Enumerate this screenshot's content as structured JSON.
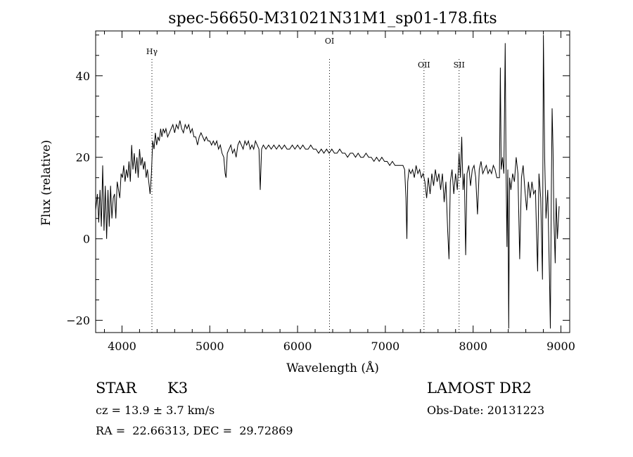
{
  "chart_data": {
    "type": "line",
    "title": "spec-56650-M31021N31M1_sp01-178.fits",
    "xlabel": "Wavelength (Å)",
    "ylabel": "Flux (relative)",
    "xlim": [
      3700,
      9100
    ],
    "ylim": [
      -23,
      51
    ],
    "xticks": [
      4000,
      5000,
      6000,
      7000,
      8000,
      9000
    ],
    "yticks": [
      -20,
      0,
      20,
      40
    ],
    "grid": false,
    "series": [
      {
        "values": [
          [
            3700,
            7
          ],
          [
            3720,
            11
          ],
          [
            3735,
            4
          ],
          [
            3750,
            12
          ],
          [
            3765,
            3
          ],
          [
            3780,
            18
          ],
          [
            3795,
            2
          ],
          [
            3810,
            13
          ],
          [
            3825,
            0
          ],
          [
            3840,
            12
          ],
          [
            3855,
            3
          ],
          [
            3870,
            13
          ],
          [
            3885,
            5
          ],
          [
            3900,
            10
          ],
          [
            3915,
            11
          ],
          [
            3930,
            5
          ],
          [
            3945,
            14
          ],
          [
            3960,
            12
          ],
          [
            3975,
            10
          ],
          [
            3990,
            16
          ],
          [
            4005,
            15
          ],
          [
            4020,
            18
          ],
          [
            4035,
            14
          ],
          [
            4050,
            17
          ],
          [
            4065,
            15
          ],
          [
            4080,
            19
          ],
          [
            4095,
            14
          ],
          [
            4110,
            23
          ],
          [
            4125,
            17
          ],
          [
            4140,
            21
          ],
          [
            4155,
            16
          ],
          [
            4170,
            20
          ],
          [
            4185,
            15
          ],
          [
            4200,
            22
          ],
          [
            4215,
            18
          ],
          [
            4230,
            20
          ],
          [
            4245,
            17
          ],
          [
            4260,
            19
          ],
          [
            4275,
            15
          ],
          [
            4290,
            17
          ],
          [
            4305,
            14
          ],
          [
            4320,
            11
          ],
          [
            4335,
            16
          ],
          [
            4350,
            24
          ],
          [
            4365,
            22
          ],
          [
            4380,
            26
          ],
          [
            4395,
            23
          ],
          [
            4410,
            25
          ],
          [
            4425,
            24
          ],
          [
            4440,
            27
          ],
          [
            4455,
            25
          ],
          [
            4470,
            27
          ],
          [
            4485,
            26
          ],
          [
            4500,
            27
          ],
          [
            4520,
            25
          ],
          [
            4540,
            26
          ],
          [
            4560,
            27
          ],
          [
            4580,
            28
          ],
          [
            4600,
            26
          ],
          [
            4620,
            28
          ],
          [
            4640,
            27
          ],
          [
            4660,
            29
          ],
          [
            4680,
            27
          ],
          [
            4700,
            26
          ],
          [
            4720,
            28
          ],
          [
            4740,
            27
          ],
          [
            4760,
            28
          ],
          [
            4780,
            26
          ],
          [
            4800,
            27
          ],
          [
            4820,
            25
          ],
          [
            4840,
            25
          ],
          [
            4860,
            23
          ],
          [
            4880,
            25
          ],
          [
            4900,
            26
          ],
          [
            4920,
            25
          ],
          [
            4940,
            24
          ],
          [
            4960,
            25
          ],
          [
            4980,
            24
          ],
          [
            5000,
            24
          ],
          [
            5020,
            23
          ],
          [
            5040,
            24
          ],
          [
            5060,
            23
          ],
          [
            5080,
            24
          ],
          [
            5100,
            22
          ],
          [
            5120,
            23
          ],
          [
            5140,
            21
          ],
          [
            5160,
            20
          ],
          [
            5175,
            16
          ],
          [
            5185,
            15
          ],
          [
            5200,
            21
          ],
          [
            5220,
            22
          ],
          [
            5240,
            23
          ],
          [
            5260,
            21
          ],
          [
            5280,
            22
          ],
          [
            5300,
            20
          ],
          [
            5320,
            23
          ],
          [
            5340,
            24
          ],
          [
            5360,
            23
          ],
          [
            5380,
            22
          ],
          [
            5400,
            24
          ],
          [
            5420,
            23
          ],
          [
            5440,
            24
          ],
          [
            5460,
            22
          ],
          [
            5480,
            23
          ],
          [
            5500,
            22
          ],
          [
            5520,
            24
          ],
          [
            5540,
            23
          ],
          [
            5560,
            22
          ],
          [
            5575,
            12
          ],
          [
            5590,
            22
          ],
          [
            5610,
            23
          ],
          [
            5640,
            22
          ],
          [
            5670,
            23
          ],
          [
            5700,
            22
          ],
          [
            5730,
            23
          ],
          [
            5760,
            22
          ],
          [
            5790,
            23
          ],
          [
            5820,
            22
          ],
          [
            5850,
            23
          ],
          [
            5880,
            22
          ],
          [
            5910,
            22
          ],
          [
            5940,
            23
          ],
          [
            5970,
            22
          ],
          [
            6000,
            23
          ],
          [
            6030,
            22
          ],
          [
            6060,
            23
          ],
          [
            6090,
            22
          ],
          [
            6120,
            22
          ],
          [
            6150,
            23
          ],
          [
            6180,
            22
          ],
          [
            6210,
            22
          ],
          [
            6240,
            21
          ],
          [
            6270,
            22
          ],
          [
            6300,
            21
          ],
          [
            6330,
            22
          ],
          [
            6360,
            21
          ],
          [
            6390,
            22
          ],
          [
            6420,
            21
          ],
          [
            6450,
            21
          ],
          [
            6480,
            22
          ],
          [
            6510,
            21
          ],
          [
            6540,
            21
          ],
          [
            6570,
            20
          ],
          [
            6600,
            21
          ],
          [
            6630,
            21
          ],
          [
            6660,
            20
          ],
          [
            6690,
            21
          ],
          [
            6720,
            20
          ],
          [
            6750,
            20
          ],
          [
            6780,
            21
          ],
          [
            6810,
            20
          ],
          [
            6840,
            20
          ],
          [
            6870,
            19
          ],
          [
            6900,
            20
          ],
          [
            6930,
            19
          ],
          [
            6960,
            20
          ],
          [
            6990,
            19
          ],
          [
            7020,
            19
          ],
          [
            7050,
            18
          ],
          [
            7080,
            19
          ],
          [
            7110,
            18
          ],
          [
            7140,
            18
          ],
          [
            7170,
            18
          ],
          [
            7200,
            18
          ],
          [
            7220,
            17
          ],
          [
            7235,
            10
          ],
          [
            7245,
            0
          ],
          [
            7255,
            14
          ],
          [
            7270,
            17
          ],
          [
            7290,
            16
          ],
          [
            7310,
            17
          ],
          [
            7330,
            15
          ],
          [
            7350,
            18
          ],
          [
            7370,
            16
          ],
          [
            7390,
            17
          ],
          [
            7410,
            15
          ],
          [
            7430,
            16
          ],
          [
            7450,
            14
          ],
          [
            7470,
            10
          ],
          [
            7490,
            15
          ],
          [
            7510,
            11
          ],
          [
            7530,
            16
          ],
          [
            7550,
            13
          ],
          [
            7570,
            17
          ],
          [
            7590,
            14
          ],
          [
            7610,
            16
          ],
          [
            7630,
            12
          ],
          [
            7650,
            16
          ],
          [
            7670,
            9
          ],
          [
            7690,
            14
          ],
          [
            7710,
            2
          ],
          [
            7725,
            -5
          ],
          [
            7740,
            14
          ],
          [
            7760,
            17
          ],
          [
            7780,
            11
          ],
          [
            7800,
            16
          ],
          [
            7820,
            12
          ],
          [
            7840,
            21
          ],
          [
            7855,
            15
          ],
          [
            7870,
            25
          ],
          [
            7885,
            12
          ],
          [
            7900,
            16
          ],
          [
            7915,
            -4
          ],
          [
            7930,
            16
          ],
          [
            7950,
            18
          ],
          [
            7970,
            13
          ],
          [
            7990,
            17
          ],
          [
            8010,
            18
          ],
          [
            8030,
            15
          ],
          [
            8050,
            6
          ],
          [
            8070,
            17
          ],
          [
            8090,
            19
          ],
          [
            8110,
            16
          ],
          [
            8130,
            17
          ],
          [
            8150,
            18
          ],
          [
            8170,
            16
          ],
          [
            8190,
            17
          ],
          [
            8210,
            16
          ],
          [
            8230,
            18
          ],
          [
            8250,
            17
          ],
          [
            8270,
            15
          ],
          [
            8290,
            15
          ],
          [
            8300,
            15
          ],
          [
            8310,
            42
          ],
          [
            8320,
            17
          ],
          [
            8335,
            20
          ],
          [
            8350,
            16
          ],
          [
            8365,
            48
          ],
          [
            8375,
            17
          ],
          [
            8385,
            -2
          ],
          [
            8395,
            17
          ],
          [
            8405,
            -22
          ],
          [
            8415,
            15
          ],
          [
            8430,
            12
          ],
          [
            8450,
            16
          ],
          [
            8470,
            14
          ],
          [
            8490,
            20
          ],
          [
            8510,
            16
          ],
          [
            8530,
            -5
          ],
          [
            8550,
            15
          ],
          [
            8570,
            18
          ],
          [
            8590,
            12
          ],
          [
            8610,
            7
          ],
          [
            8630,
            14
          ],
          [
            8650,
            10
          ],
          [
            8670,
            14
          ],
          [
            8690,
            11
          ],
          [
            8710,
            12
          ],
          [
            8720,
            3
          ],
          [
            8735,
            -8
          ],
          [
            8750,
            16
          ],
          [
            8770,
            10
          ],
          [
            8790,
            -10
          ],
          [
            8800,
            50
          ],
          [
            8815,
            20
          ],
          [
            8830,
            5
          ],
          [
            8850,
            12
          ],
          [
            8870,
            -10
          ],
          [
            8880,
            -22
          ],
          [
            8890,
            10
          ],
          [
            8900,
            32
          ],
          [
            8910,
            22
          ],
          [
            8920,
            5
          ],
          [
            8935,
            -6
          ],
          [
            8945,
            10
          ],
          [
            8960,
            0
          ],
          [
            8980,
            8
          ]
        ]
      }
    ],
    "line_markers": [
      {
        "label": "Hγ",
        "wavelength": 4341
      },
      {
        "label": "OI",
        "wavelength": 6364
      },
      {
        "label": "OII",
        "wavelength": 7440
      },
      {
        "label": "SII",
        "wavelength": 7840
      }
    ]
  },
  "info": {
    "class_label": "STAR",
    "subclass": "K3",
    "redshift": "cz = 13.9 ± 3.7 km/s",
    "coordinates": "RA =  22.66313, DEC =  29.72869",
    "survey": "LAMOST DR2",
    "obs_date": "Obs-Date: 20131223"
  }
}
